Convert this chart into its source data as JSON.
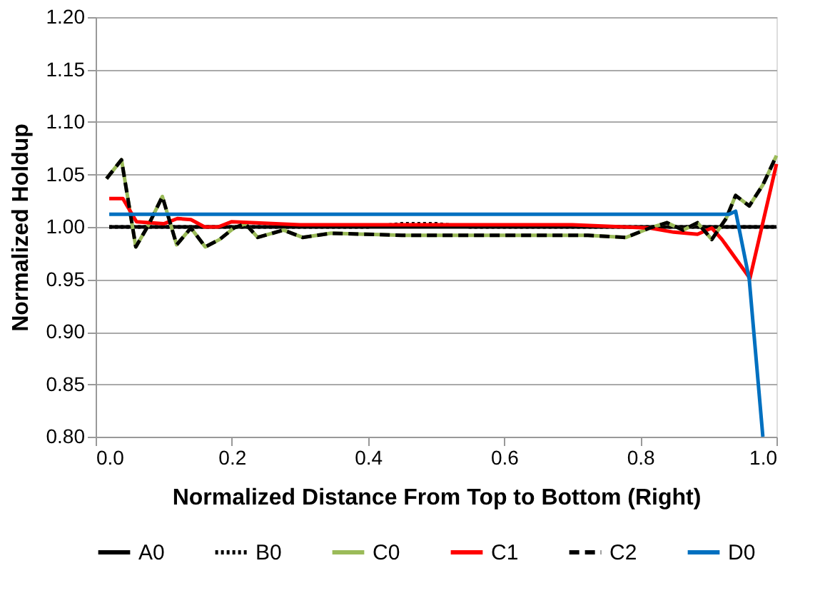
{
  "chart_data": {
    "type": "line",
    "xlabel": "Normalized Distance From Top to Bottom (Right)",
    "ylabel": "Normalized Holdup",
    "xlim": [
      0,
      1.0
    ],
    "xticks": [
      {
        "value": 0,
        "label": "0.0"
      },
      0.2,
      0.4,
      0.6,
      0.8,
      {
        "value": 1.0,
        "label": "1.0"
      }
    ],
    "ylim": [
      0.8,
      1.2
    ],
    "yticks": [
      {
        "value": 0.8,
        "label": "0.80"
      },
      0.85,
      {
        "value": 0.9,
        "label": "0.90"
      },
      0.95,
      {
        "value": 1.0,
        "label": "1.00"
      },
      1.05,
      {
        "value": 1.1,
        "label": "1.10"
      },
      1.15,
      {
        "value": 1.2,
        "label": "1.20"
      }
    ],
    "grid": "y",
    "legend": "bottom",
    "marker": "none",
    "series": [
      {
        "name": "A0",
        "color": "#000000",
        "line_style": "solid",
        "x": [
          0.02,
          1.0
        ],
        "values": [
          1.0,
          1.0
        ]
      },
      {
        "name": "B0",
        "color": "#000000",
        "line_style": "dotted",
        "x": [
          0.02,
          0.4,
          0.45,
          0.5,
          0.55,
          1.0
        ],
        "values": [
          1.0,
          1.0,
          1.003,
          1.003,
          1.0,
          1.0
        ]
      },
      {
        "name": "C0",
        "color": "#9bbb59",
        "line_style": "solid",
        "x": [
          0.016,
          0.038,
          0.059,
          0.077,
          0.098,
          0.119,
          0.14,
          0.161,
          0.182,
          0.203,
          0.22,
          0.238,
          0.276,
          0.304,
          0.346,
          0.45,
          0.55,
          0.65,
          0.723,
          0.779,
          0.814,
          0.839,
          0.863,
          0.884,
          0.905,
          0.926,
          0.94,
          0.96,
          0.98,
          1.0
        ],
        "values": [
          1.046,
          1.064,
          0.981,
          1.001,
          1.029,
          0.983,
          0.999,
          0.981,
          0.988,
          0.999,
          1.003,
          0.99,
          0.997,
          0.99,
          0.994,
          0.992,
          0.992,
          0.992,
          0.992,
          0.99,
          0.999,
          1.004,
          0.997,
          1.004,
          0.988,
          1.008,
          1.03,
          1.02,
          1.04,
          1.068
        ]
      },
      {
        "name": "C1",
        "color": "#ff0000",
        "line_style": "solid",
        "x": [
          0.02,
          0.04,
          0.06,
          0.1,
          0.12,
          0.14,
          0.16,
          0.18,
          0.2,
          0.3,
          0.5,
          0.7,
          0.814,
          0.849,
          0.884,
          0.905,
          0.92,
          0.961,
          1.0
        ],
        "values": [
          1.027,
          1.027,
          1.005,
          1.003,
          1.008,
          1.007,
          1.0,
          1.0,
          1.005,
          1.002,
          1.002,
          1.002,
          0.999,
          0.995,
          0.993,
          0.999,
          0.988,
          0.951,
          1.06
        ]
      },
      {
        "name": "C2",
        "color": "#000000",
        "line_style": "dashed",
        "x": [
          0.016,
          0.038,
          0.059,
          0.077,
          0.098,
          0.119,
          0.14,
          0.161,
          0.182,
          0.203,
          0.22,
          0.238,
          0.276,
          0.304,
          0.346,
          0.45,
          0.55,
          0.65,
          0.723,
          0.779,
          0.814,
          0.839,
          0.863,
          0.884,
          0.905,
          0.926,
          0.94,
          0.96,
          0.98,
          1.0
        ],
        "values": [
          1.046,
          1.064,
          0.981,
          1.001,
          1.029,
          0.983,
          0.999,
          0.981,
          0.988,
          0.999,
          1.003,
          0.99,
          0.997,
          0.99,
          0.994,
          0.992,
          0.992,
          0.992,
          0.992,
          0.99,
          0.999,
          1.004,
          0.997,
          1.004,
          0.988,
          1.008,
          1.03,
          1.02,
          1.04,
          1.068
        ]
      },
      {
        "name": "D0",
        "color": "#0070c0",
        "line_style": "solid",
        "x": [
          0.02,
          0.93,
          0.94,
          0.96,
          0.98
        ],
        "values": [
          1.012,
          1.012,
          1.015,
          0.95,
          0.8
        ]
      }
    ]
  }
}
